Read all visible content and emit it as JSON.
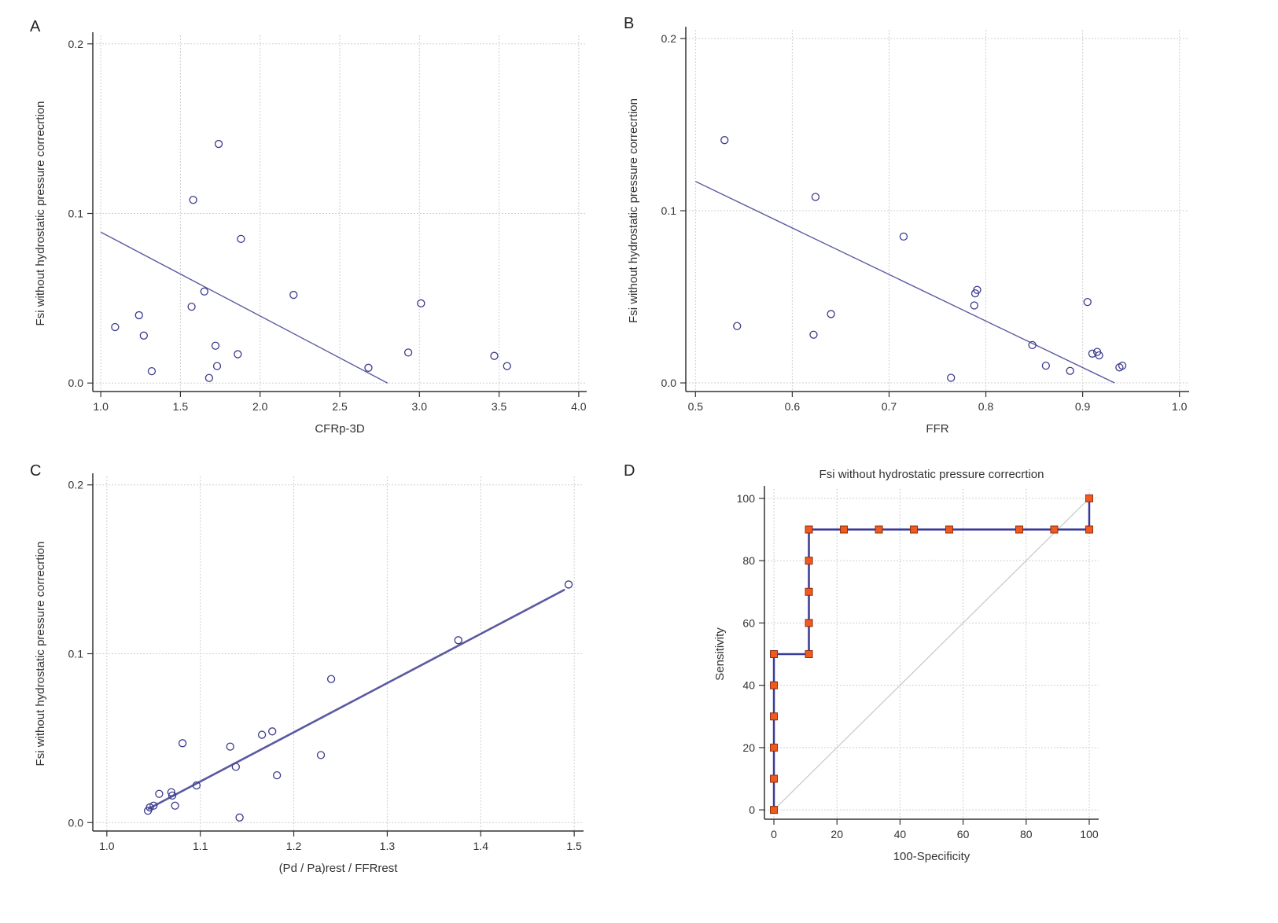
{
  "colors": {
    "marker": "#3a3a8c",
    "line": "#5a5aa0",
    "roc_line": "#3a3a9a",
    "roc_marker_fill": "#f05a1e",
    "roc_marker_edge": "#8a3010",
    "grid": "#cfcfcf",
    "diagonal": "#c8c8c8"
  },
  "chart_data": [
    {
      "panel": "A",
      "type": "scatter",
      "title": "",
      "xlabel": "CFRp-3D",
      "ylabel": "Fsi without hydrostatic pressure correcrtion",
      "xlim": [
        0.95,
        4.05
      ],
      "ylim": [
        -0.005,
        0.205
      ],
      "xticks": [
        1.0,
        1.5,
        2.0,
        2.5,
        3.0,
        3.5,
        4.0
      ],
      "xtick_labels": [
        "1.0",
        "1.5",
        "2.0",
        "2.5",
        "3.0",
        "3.5",
        "4.0"
      ],
      "yticks": [
        0.0,
        0.1,
        0.2
      ],
      "ytick_labels": [
        "0.0",
        "0.1",
        "0.2"
      ],
      "x": [
        1.09,
        1.24,
        1.27,
        1.32,
        1.57,
        1.58,
        1.65,
        1.68,
        1.72,
        1.73,
        1.74,
        1.86,
        1.88,
        2.21,
        2.68,
        2.93,
        3.01,
        3.47,
        3.55
      ],
      "y": [
        0.033,
        0.04,
        0.028,
        0.007,
        0.045,
        0.108,
        0.054,
        0.003,
        0.022,
        0.01,
        0.141,
        0.017,
        0.085,
        0.052,
        0.009,
        0.018,
        0.047,
        0.016,
        0.01
      ],
      "fit": [
        [
          1.0,
          0.089
        ],
        [
          2.8,
          0.0
        ]
      ]
    },
    {
      "panel": "B",
      "type": "scatter",
      "title": "",
      "xlabel": "FFR",
      "ylabel": "Fsi without hydrostatic pressure correcrtion",
      "xlim": [
        0.49,
        1.01
      ],
      "ylim": [
        -0.005,
        0.205
      ],
      "xticks": [
        0.5,
        0.6,
        0.7,
        0.8,
        0.9,
        1.0
      ],
      "xtick_labels": [
        "0.5",
        "0.6",
        "0.7",
        "0.8",
        "0.9",
        "1.0"
      ],
      "yticks": [
        0.0,
        0.1,
        0.2
      ],
      "ytick_labels": [
        "0.0",
        "0.1",
        "0.2"
      ],
      "x": [
        0.53,
        0.543,
        0.622,
        0.624,
        0.64,
        0.715,
        0.764,
        0.788,
        0.789,
        0.791,
        0.848,
        0.862,
        0.887,
        0.905,
        0.91,
        0.915,
        0.917,
        0.938,
        0.941
      ],
      "y": [
        0.141,
        0.033,
        0.028,
        0.108,
        0.04,
        0.085,
        0.003,
        0.045,
        0.052,
        0.054,
        0.022,
        0.01,
        0.007,
        0.047,
        0.017,
        0.018,
        0.016,
        0.009,
        0.01
      ],
      "fit": [
        [
          0.5,
          0.117
        ],
        [
          0.933,
          0.0
        ]
      ]
    },
    {
      "panel": "C",
      "type": "scatter",
      "title": "",
      "xlabel": "(Pd / Pa)rest / FFRrest",
      "ylabel": "Fsi without hydrostatic pressure correcrtion",
      "xlim": [
        0.985,
        1.51
      ],
      "ylim": [
        -0.005,
        0.205
      ],
      "xticks": [
        1.0,
        1.1,
        1.2,
        1.3,
        1.4,
        1.5
      ],
      "xtick_labels": [
        "1.0",
        "1.1",
        "1.2",
        "1.3",
        "1.4",
        "1.5"
      ],
      "yticks": [
        0.0,
        0.1,
        0.2
      ],
      "ytick_labels": [
        "0.0",
        "0.1",
        "0.2"
      ],
      "x": [
        1.044,
        1.046,
        1.05,
        1.056,
        1.069,
        1.07,
        1.073,
        1.081,
        1.096,
        1.132,
        1.138,
        1.142,
        1.166,
        1.177,
        1.182,
        1.229,
        1.24,
        1.376,
        1.494
      ],
      "y": [
        0.007,
        0.009,
        0.01,
        0.017,
        0.018,
        0.016,
        0.01,
        0.047,
        0.022,
        0.045,
        0.033,
        0.003,
        0.052,
        0.054,
        0.028,
        0.04,
        0.085,
        0.108,
        0.141
      ],
      "fit": [
        [
          1.044,
          0.008
        ],
        [
          1.49,
          0.138
        ]
      ]
    },
    {
      "panel": "D",
      "type": "line",
      "title": "Fsi without hydrostatic pressure correcrtion",
      "xlabel": "100-Specificity",
      "ylabel": "Sensitivity",
      "xlim": [
        -3,
        103
      ],
      "ylim": [
        -3,
        103
      ],
      "xticks": [
        0,
        20,
        40,
        60,
        80,
        100
      ],
      "xtick_labels": [
        "0",
        "20",
        "40",
        "60",
        "80",
        "100"
      ],
      "yticks": [
        0,
        20,
        40,
        60,
        80,
        100
      ],
      "ytick_labels": [
        "0",
        "20",
        "40",
        "60",
        "80",
        "100"
      ],
      "series": [
        {
          "name": "ROC",
          "x": [
            0,
            0,
            0,
            0,
            0,
            0,
            11.1,
            11.1,
            11.1,
            11.1,
            11.1,
            22.2,
            33.3,
            44.4,
            55.6,
            77.8,
            88.9,
            100,
            100
          ],
          "y": [
            0,
            10,
            20,
            30,
            40,
            50,
            50,
            60,
            70,
            80,
            90,
            90,
            90,
            90,
            90,
            90,
            90,
            90,
            100
          ]
        },
        {
          "name": "reference",
          "x": [
            0,
            100
          ],
          "y": [
            0,
            100
          ]
        }
      ]
    }
  ]
}
